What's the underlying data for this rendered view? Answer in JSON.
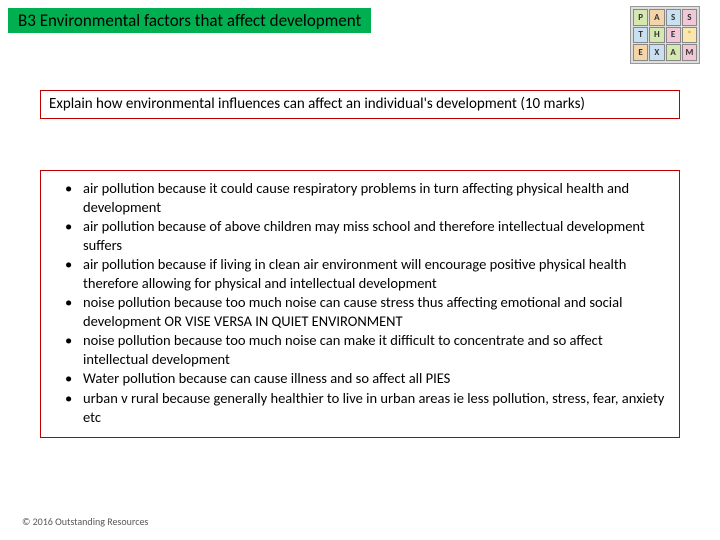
{
  "header": {
    "title": "B3 Environmental factors that affect development",
    "background_color": "#00b050"
  },
  "icon": {
    "tiles": [
      "P",
      "A",
      "S",
      "S",
      "T",
      "H",
      "E",
      "*",
      "E",
      "X",
      "A",
      "M"
    ]
  },
  "question": {
    "text": "Explain how environmental influences can affect an individual's development (10 marks)",
    "border_color": "#c00000"
  },
  "bullets": {
    "border_color": "#c00000",
    "items": [
      "air pollution because it could cause respiratory problems in turn affecting physical health and development",
      "air pollution because of above children may miss school and therefore intellectual development suffers",
      "air pollution because if living in clean air environment will encourage positive physical health therefore allowing for physical and intellectual development",
      "noise pollution because too much noise can cause stress thus affecting emotional and social development OR VISE VERSA IN QUIET ENVIRONMENT",
      "noise pollution because too much noise can make it difficult to concentrate and so affect intellectual development",
      "Water pollution because can cause illness and so affect all PIES",
      "urban v rural because generally healthier to live in urban areas ie less pollution, stress, fear, anxiety etc"
    ]
  },
  "footer": {
    "text": "© 2016 Outstanding Resources"
  }
}
